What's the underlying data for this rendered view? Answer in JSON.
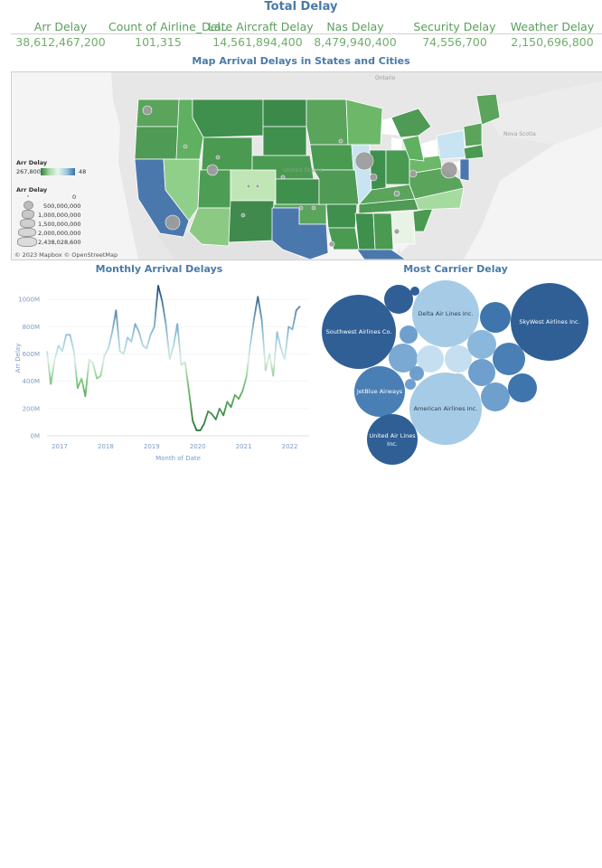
{
  "header": {
    "title": "Total Delay"
  },
  "kpis": [
    {
      "label": "Arr Delay",
      "value": "38,612,467,200"
    },
    {
      "label": "Count of Airline_Del..",
      "value": "101,315"
    },
    {
      "label": "Late Aircraft Delay",
      "value": "14,561,894,400"
    },
    {
      "label": "Nas Delay",
      "value": "8,479,940,400"
    },
    {
      "label": "Security Delay",
      "value": "74,556,700"
    },
    {
      "label": "Weather Delay",
      "value": "2,150,696,800"
    }
  ],
  "map": {
    "title": "Map Arrival Delays in States and Cities",
    "labels": {
      "ontario": "Ontario",
      "nova_scotia": "Nova Scotia",
      "united_states": "United States"
    },
    "legend_color": {
      "title": "Arr Delay",
      "min": "267,800",
      "max": "48"
    },
    "legend_size": {
      "title": "Arr Delay",
      "items": [
        "0",
        "500,000,000",
        "1,000,000,000",
        "1,500,000,000",
        "2,000,000,000",
        "2,438,028,600"
      ]
    },
    "attribution": "© 2023 Mapbox © OpenStreetMap",
    "colors": {
      "low": "#c8e6c9",
      "mid": "#4f9a55",
      "high": "#3b6fa8",
      "land": "#e6e6e6",
      "water": "#ffffff"
    }
  },
  "monthly": {
    "title": "Monthly Arrival Delays",
    "ylabel": "Arr Delay",
    "xlabel": "Month of Date",
    "yticks": [
      "0M",
      "200M",
      "400M",
      "600M",
      "800M",
      "1000M"
    ],
    "xticks": [
      "2017",
      "2018",
      "2019",
      "2020",
      "2021",
      "2022"
    ]
  },
  "carrier": {
    "title": "Most Carrier Delay",
    "labels": {
      "southwest": "Southwest Airlines Co.",
      "delta": "Delta Air Lines Inc.",
      "skywest": "SkyWest Airlines Inc.",
      "jetblue": "JetBlue Airways",
      "american": "American Airlines Inc.",
      "united_1": "United Air Lines",
      "united_2": "Inc."
    }
  },
  "chart_data": [
    {
      "type": "line",
      "title": "Monthly Arrival Delays",
      "xlabel": "Month of Date",
      "ylabel": "Arr Delay",
      "ylim": [
        0,
        1100000000
      ],
      "x": [
        "2017-01",
        "2017-02",
        "2017-03",
        "2017-04",
        "2017-05",
        "2017-06",
        "2017-07",
        "2017-08",
        "2017-09",
        "2017-10",
        "2017-11",
        "2017-12",
        "2018-01",
        "2018-02",
        "2018-03",
        "2018-04",
        "2018-05",
        "2018-06",
        "2018-07",
        "2018-08",
        "2018-09",
        "2018-10",
        "2018-11",
        "2018-12",
        "2019-01",
        "2019-02",
        "2019-03",
        "2019-04",
        "2019-05",
        "2019-06",
        "2019-07",
        "2019-08",
        "2019-09",
        "2019-10",
        "2019-11",
        "2019-12",
        "2020-01",
        "2020-02",
        "2020-03",
        "2020-04",
        "2020-05",
        "2020-06",
        "2020-07",
        "2020-08",
        "2020-09",
        "2020-10",
        "2020-11",
        "2020-12",
        "2021-01",
        "2021-02",
        "2021-03",
        "2021-04",
        "2021-05",
        "2021-06",
        "2021-07",
        "2021-08",
        "2021-09",
        "2021-10",
        "2021-11",
        "2021-12",
        "2022-01",
        "2022-02",
        "2022-03",
        "2022-04",
        "2022-05",
        "2022-06",
        "2022-07"
      ],
      "series": [
        {
          "values": [
            620,
            380,
            560,
            660,
            620,
            740,
            740,
            620,
            350,
            420,
            290,
            560,
            530,
            420,
            440,
            590,
            640,
            760,
            920,
            620,
            600,
            720,
            690,
            820,
            760,
            660,
            640,
            740,
            800,
            1100,
            990,
            820,
            560,
            660,
            820,
            520,
            540,
            330,
            110,
            40,
            40,
            90,
            180,
            160,
            120,
            200,
            150,
            250,
            210,
            300,
            270,
            330,
            430,
            660,
            860,
            1020,
            850,
            480,
            600,
            440,
            760,
            640,
            560,
            800,
            780,
            920,
            950
          ]
        }
      ]
    },
    {
      "type": "bubble",
      "title": "Most Carrier Delay",
      "categories": [
        "Southwest Airlines Co.",
        "Delta Air Lines Inc.",
        "SkyWest Airlines Inc.",
        "JetBlue Airways",
        "American Airlines Inc.",
        "United Air Lines Inc."
      ]
    }
  ]
}
